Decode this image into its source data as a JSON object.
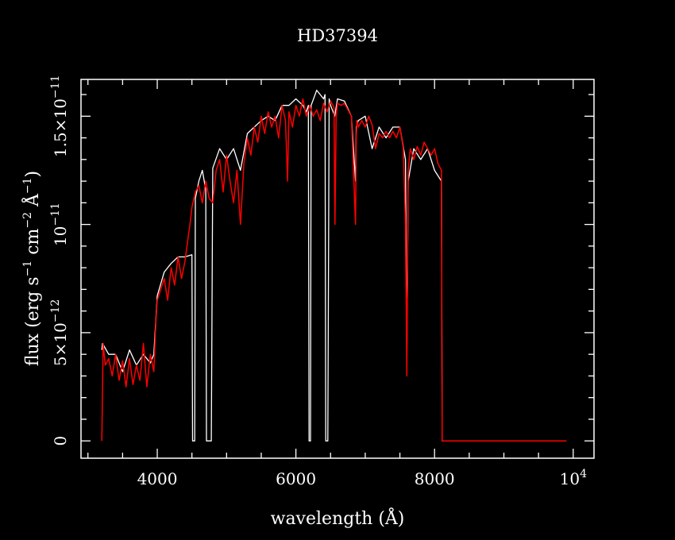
{
  "chart_data": {
    "type": "line",
    "title": "HD37394",
    "xlabel": "wavelength (Å)",
    "ylabel": {
      "main": "flux (erg s",
      "e1": "−1",
      "mid1": " cm",
      "e2": "−2",
      "mid2": " Å",
      "e3": "−1",
      "end": ")"
    },
    "xlim": [
      2900,
      10300
    ],
    "ylim": [
      -8e-13,
      1.67e-11
    ],
    "x_ticks": [
      {
        "value": 4000,
        "label": "4000"
      },
      {
        "value": 6000,
        "label": "6000"
      },
      {
        "value": 8000,
        "label": "8000"
      },
      {
        "value": 10000,
        "label": "10",
        "exp": "4"
      }
    ],
    "y_ticks": [
      {
        "value": 0,
        "label": "0",
        "exp": ""
      },
      {
        "value": 5e-12,
        "label": "5×10",
        "exp": "−12"
      },
      {
        "value": 1e-11,
        "label": "10",
        "exp": "−11"
      },
      {
        "value": 1.5e-11,
        "label": "1.5×10",
        "exp": "−11"
      }
    ],
    "colors": {
      "background": "#000000",
      "axes": "#ffffff",
      "series_a": "#ffffff",
      "series_b": "#ff0000"
    },
    "series": [
      {
        "color": "#ffffff",
        "x": [
          3200,
          3210,
          3300,
          3400,
          3500,
          3600,
          3700,
          3800,
          3900,
          3950,
          4000,
          4100,
          4200,
          4300,
          4400,
          4500,
          4510,
          4520,
          4530,
          4540,
          4550,
          4600,
          4650,
          4700,
          4710,
          4720,
          4730,
          4740,
          4760,
          4780,
          4800,
          4900,
          5000,
          5100,
          5200,
          5300,
          5400,
          5500,
          5600,
          5700,
          5800,
          5900,
          6000,
          6100,
          6150,
          6180,
          6190,
          6200,
          6210,
          6220,
          6300,
          6400,
          6420,
          6430,
          6440,
          6450,
          6460,
          6480,
          6500,
          6560,
          6600,
          6700,
          6800,
          6860,
          6870,
          6900,
          7000,
          7100,
          7200,
          7300,
          7400,
          7500,
          7580,
          7600,
          7620,
          7700,
          7800,
          7900,
          8000,
          8100,
          8110,
          8200,
          9000,
          9900
        ],
        "y": [
          4.2e-12,
          4.5e-12,
          4e-12,
          4e-12,
          3.2e-12,
          4.2e-12,
          3.5e-12,
          4e-12,
          3.6e-12,
          4e-12,
          6.7e-12,
          7.8e-12,
          8.2e-12,
          8.5e-12,
          8.5e-12,
          8.6e-12,
          0,
          0,
          0,
          0,
          1.12e-11,
          1.2e-11,
          1.25e-11,
          1.16e-11,
          0,
          0,
          0,
          0,
          0,
          0,
          1.26e-11,
          1.35e-11,
          1.3e-11,
          1.35e-11,
          1.25e-11,
          1.42e-11,
          1.45e-11,
          1.48e-11,
          1.5e-11,
          1.48e-11,
          1.55e-11,
          1.55e-11,
          1.58e-11,
          1.55e-11,
          1.52e-11,
          1.55e-11,
          0,
          0,
          0,
          1.55e-11,
          1.62e-11,
          1.58e-11,
          1.6e-11,
          0,
          0,
          0,
          0,
          1.58e-11,
          1.55e-11,
          1.5e-11,
          1.58e-11,
          1.57e-11,
          1.5e-11,
          1.2e-11,
          1.45e-11,
          1.48e-11,
          1.5e-11,
          1.35e-11,
          1.45e-11,
          1.4e-11,
          1.45e-11,
          1.45e-11,
          1.3e-11,
          4e-12,
          1.2e-11,
          1.35e-11,
          1.3e-11,
          1.35e-11,
          1.25e-11,
          1.2e-11,
          0,
          0,
          0,
          0
        ]
      },
      {
        "color": "#ff0000",
        "x": [
          3200,
          3220,
          3250,
          3300,
          3350,
          3400,
          3450,
          3500,
          3550,
          3600,
          3650,
          3700,
          3750,
          3800,
          3850,
          3900,
          3950,
          3980,
          4000,
          4050,
          4100,
          4150,
          4200,
          4250,
          4300,
          4350,
          4400,
          4450,
          4480,
          4500,
          4550,
          4600,
          4650,
          4700,
          4750,
          4800,
          4850,
          4900,
          4950,
          5000,
          5050,
          5100,
          5150,
          5200,
          5250,
          5300,
          5350,
          5400,
          5450,
          5500,
          5550,
          5600,
          5650,
          5700,
          5750,
          5800,
          5850,
          5880,
          5900,
          5950,
          6000,
          6050,
          6100,
          6150,
          6200,
          6250,
          6300,
          6350,
          6400,
          6450,
          6500,
          6550,
          6563,
          6580,
          6600,
          6650,
          6700,
          6750,
          6800,
          6860,
          6870,
          6880,
          6900,
          6950,
          7000,
          7050,
          7100,
          7150,
          7200,
          7250,
          7300,
          7350,
          7400,
          7450,
          7500,
          7550,
          7580,
          7600,
          7610,
          7620,
          7650,
          7700,
          7750,
          7800,
          7850,
          7900,
          7950,
          8000,
          8050,
          8100,
          8110,
          8200,
          9000,
          9900
        ],
        "y": [
          0,
          4.5e-12,
          3.5e-12,
          3.8e-12,
          3e-12,
          4e-12,
          2.8e-12,
          3.7e-12,
          2.5e-12,
          3.8e-12,
          2.6e-12,
          3.5e-12,
          2.8e-12,
          4.5e-12,
          2.5e-12,
          4e-12,
          3.2e-12,
          5.5e-12,
          6.5e-12,
          7e-12,
          7.5e-12,
          6.5e-12,
          8e-12,
          7.2e-12,
          8.5e-12,
          7.5e-12,
          8.3e-12,
          9.5e-12,
          1.02e-11,
          1.08e-11,
          1.15e-11,
          1.18e-11,
          1.1e-11,
          1.2e-11,
          1.12e-11,
          1.1e-11,
          1.25e-11,
          1.3e-11,
          1.15e-11,
          1.32e-11,
          1.2e-11,
          1.1e-11,
          1.25e-11,
          1e-11,
          1.28e-11,
          1.4e-11,
          1.32e-11,
          1.45e-11,
          1.38e-11,
          1.5e-11,
          1.42e-11,
          1.52e-11,
          1.45e-11,
          1.5e-11,
          1.4e-11,
          1.55e-11,
          1.48e-11,
          1.2e-11,
          1.52e-11,
          1.45e-11,
          1.55e-11,
          1.5e-11,
          1.58e-11,
          1.5e-11,
          1.55e-11,
          1.5e-11,
          1.53e-11,
          1.48e-11,
          1.56e-11,
          1.52e-11,
          1.57e-11,
          1.54e-11,
          1e-11,
          1.5e-11,
          1.56e-11,
          1.55e-11,
          1.56e-11,
          1.53e-11,
          1.5e-11,
          1e-11,
          1.4e-11,
          1.48e-11,
          1.45e-11,
          1.48e-11,
          1.45e-11,
          1.5e-11,
          1.46e-11,
          1.35e-11,
          1.42e-11,
          1.4e-11,
          1.43e-11,
          1.4e-11,
          1.43e-11,
          1.4e-11,
          1.45e-11,
          1.35e-11,
          1e-11,
          3e-12,
          8e-12,
          1.25e-11,
          1.35e-11,
          1.3e-11,
          1.36e-11,
          1.32e-11,
          1.38e-11,
          1.35e-11,
          1.32e-11,
          1.35e-11,
          1.28e-11,
          1.25e-11,
          0,
          0,
          0,
          0
        ]
      }
    ]
  }
}
